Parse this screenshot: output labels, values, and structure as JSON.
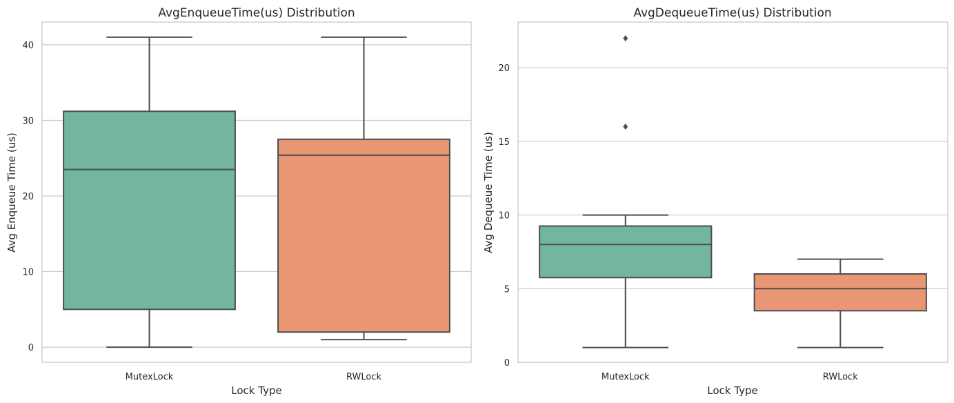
{
  "chart_data": [
    {
      "type": "box",
      "title": "AvgEnqueueTime(us) Distribution",
      "xlabel": "Lock Type",
      "ylabel": "Avg Enqueue Time (us)",
      "ylim": [
        -2,
        43
      ],
      "yticks": [
        0,
        10,
        20,
        30,
        40
      ],
      "grid": "horizontal",
      "categories": [
        "MutexLock",
        "RWLock"
      ],
      "boxes": [
        {
          "category": "MutexLock",
          "whisker_low": 0,
          "q1": 5,
          "median": 23.5,
          "q3": 31.2,
          "whisker_high": 41,
          "outliers": [],
          "color": "#72b6a1"
        },
        {
          "category": "RWLock",
          "whisker_low": 1,
          "q1": 2,
          "median": 25.4,
          "q3": 27.5,
          "whisker_high": 41,
          "outliers": [],
          "color": "#e99675"
        }
      ]
    },
    {
      "type": "box",
      "title": "AvgDequeueTime(us) Distribution",
      "xlabel": "Lock Type",
      "ylabel": "Avg Dequeue Time (us)",
      "ylim": [
        0,
        23.1
      ],
      "yticks": [
        0,
        5,
        10,
        15,
        20
      ],
      "grid": "horizontal",
      "categories": [
        "MutexLock",
        "RWLock"
      ],
      "boxes": [
        {
          "category": "MutexLock",
          "whisker_low": 1,
          "q1": 5.75,
          "median": 8,
          "q3": 9.25,
          "whisker_high": 10,
          "outliers": [
            16,
            22
          ],
          "color": "#72b6a1"
        },
        {
          "category": "RWLock",
          "whisker_low": 1,
          "q1": 3.5,
          "median": 5,
          "q3": 6,
          "whisker_high": 7,
          "outliers": [],
          "color": "#e99675"
        }
      ]
    }
  ]
}
